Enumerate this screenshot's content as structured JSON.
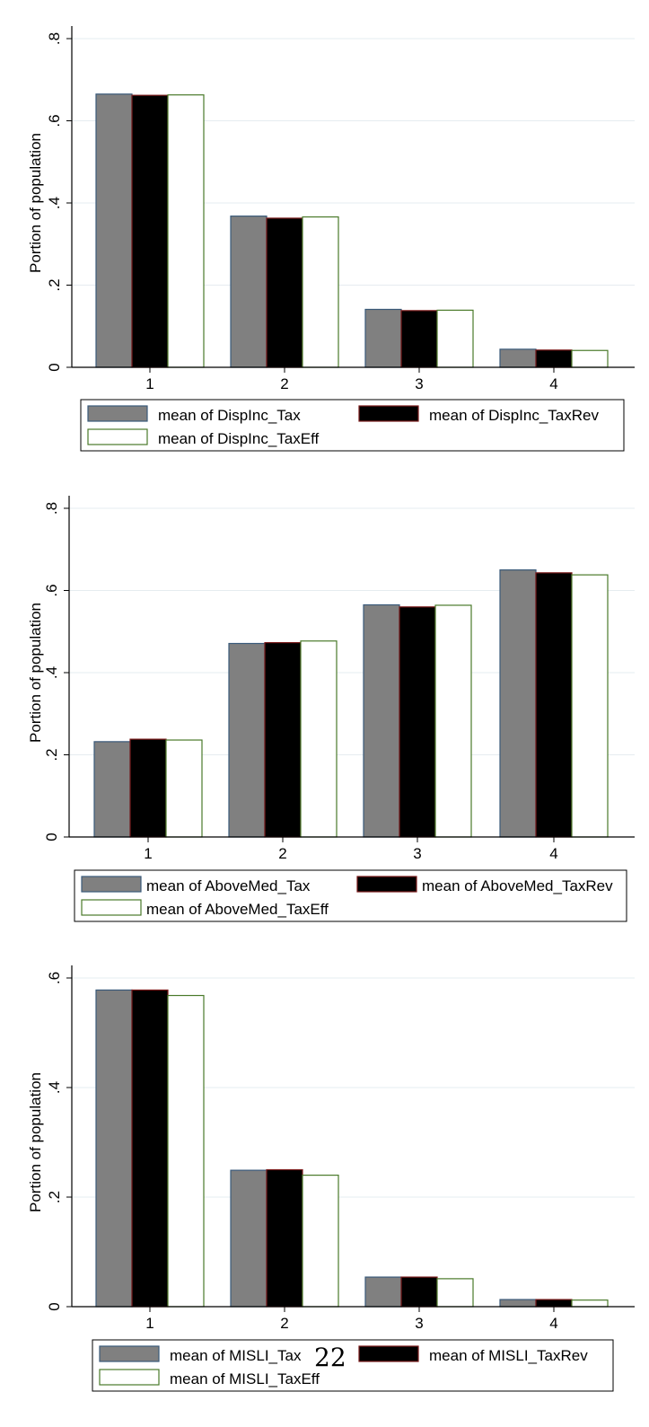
{
  "page_number": "22",
  "chart_data": [
    {
      "type": "bar",
      "ylabel": "Portion of population",
      "ylim": [
        0,
        0.8
      ],
      "yticks": [
        0,
        0.2,
        0.4,
        0.6,
        0.8
      ],
      "ytick_labels": [
        "0",
        ".2",
        ".4",
        ".6",
        ".8"
      ],
      "categories": [
        "1",
        "2",
        "3",
        "4"
      ],
      "series": [
        {
          "name": "mean of DispInc_Tax",
          "values": [
            0.665,
            0.368,
            0.141,
            0.044
          ]
        },
        {
          "name": "mean of DispInc_TaxRev",
          "values": [
            0.662,
            0.363,
            0.138,
            0.042
          ]
        },
        {
          "name": "mean of DispInc_TaxEff",
          "values": [
            0.663,
            0.366,
            0.139,
            0.041
          ]
        }
      ],
      "legend": "bottom",
      "grid": true
    },
    {
      "type": "bar",
      "ylabel": "Portion of population",
      "ylim": [
        0,
        0.8
      ],
      "yticks": [
        0,
        0.2,
        0.4,
        0.6,
        0.8
      ],
      "ytick_labels": [
        "0",
        ".2",
        ".4",
        ".6",
        ".8"
      ],
      "categories": [
        "1",
        "2",
        "3",
        "4"
      ],
      "series": [
        {
          "name": "mean of AboveMed_Tax",
          "values": [
            0.232,
            0.471,
            0.565,
            0.65
          ]
        },
        {
          "name": "mean of AboveMed_TaxRev",
          "values": [
            0.238,
            0.473,
            0.56,
            0.643
          ]
        },
        {
          "name": "mean of AboveMed_TaxEff",
          "values": [
            0.236,
            0.477,
            0.564,
            0.638
          ]
        }
      ],
      "legend": "bottom",
      "grid": true
    },
    {
      "type": "bar",
      "ylabel": "Portion of population",
      "ylim": [
        0,
        0.6
      ],
      "yticks": [
        0,
        0.2,
        0.4,
        0.6
      ],
      "ytick_labels": [
        "0",
        ".2",
        ".4",
        ".6"
      ],
      "categories": [
        "1",
        "2",
        "3",
        "4"
      ],
      "series": [
        {
          "name": "mean of MISLI_Tax",
          "values": [
            0.578,
            0.249,
            0.054,
            0.013
          ]
        },
        {
          "name": "mean of MISLI_TaxRev",
          "values": [
            0.578,
            0.25,
            0.054,
            0.013
          ]
        },
        {
          "name": "mean of MISLI_TaxEff",
          "values": [
            0.568,
            0.24,
            0.051,
            0.012
          ]
        }
      ],
      "legend": "bottom",
      "grid": true
    }
  ],
  "colors": {
    "series_fill": [
      "#808080",
      "#000000",
      "#ffffff"
    ],
    "series_stroke": [
      "#3a5a7a",
      "#7a1a1a",
      "#4a7a2a"
    ],
    "grid": "#e6ecf0",
    "axis": "#000000"
  }
}
